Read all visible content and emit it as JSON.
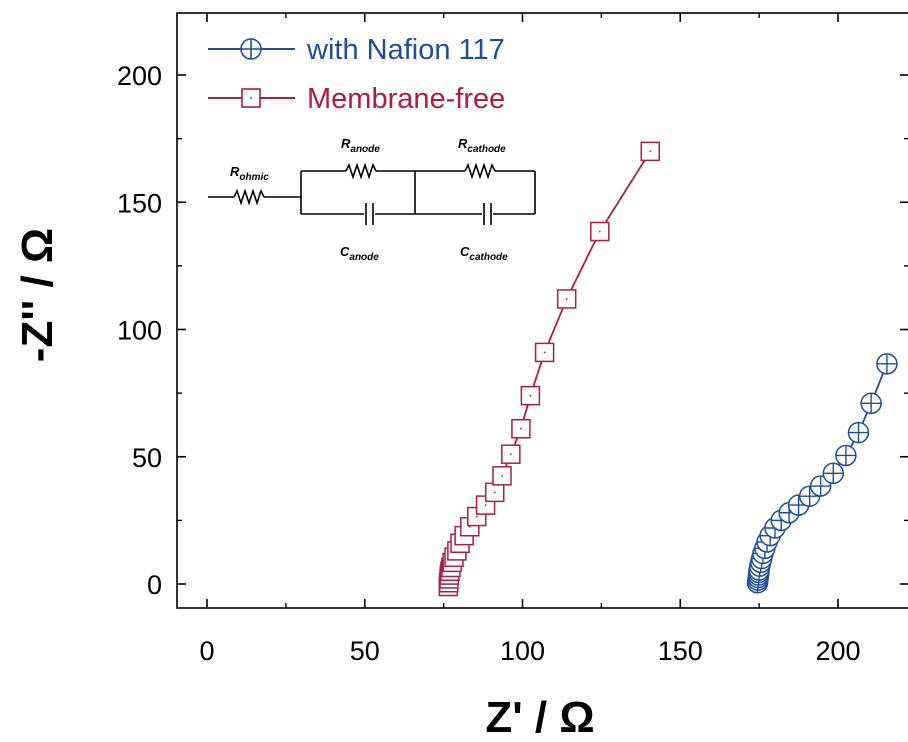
{
  "chart_data": {
    "type": "scatter",
    "xlabel": "Z' / Ω",
    "ylabel": "-Z'' / Ω",
    "xlim": [
      -10,
      220
    ],
    "ylim": [
      -10,
      225
    ],
    "xticks": [
      0,
      50,
      100,
      150,
      200
    ],
    "yticks": [
      0,
      50,
      100,
      150,
      200
    ],
    "grid": false,
    "legend_position": "top-left",
    "series": [
      {
        "name": "with Nafion 117",
        "color": "#1f4e96",
        "marker": "circle-plus",
        "points": [
          [
            174.5,
            0.5
          ],
          [
            174.6,
            1.5
          ],
          [
            174.7,
            2.5
          ],
          [
            174.8,
            3.5
          ],
          [
            174.9,
            4.5
          ],
          [
            175.0,
            5.5
          ],
          [
            175.2,
            7.0
          ],
          [
            175.5,
            8.5
          ],
          [
            175.8,
            10.0
          ],
          [
            176.2,
            12.0
          ],
          [
            176.8,
            14.0
          ],
          [
            177.5,
            16.5
          ],
          [
            178.5,
            19.0
          ],
          [
            180.0,
            22.0
          ],
          [
            182.0,
            25.0
          ],
          [
            184.5,
            28.0
          ],
          [
            187.5,
            31.0
          ],
          [
            191.0,
            34.5
          ],
          [
            194.5,
            38.5
          ],
          [
            198.5,
            43.5
          ],
          [
            202.5,
            50.5
          ],
          [
            206.5,
            59.5
          ],
          [
            210.5,
            71.0
          ],
          [
            215.5,
            86.5
          ]
        ]
      },
      {
        "name": "Membrane-free",
        "color": "#b01c44",
        "marker": "square-dot",
        "points": [
          [
            76.5,
            -1.0
          ],
          [
            76.6,
            0.5
          ],
          [
            76.7,
            2.0
          ],
          [
            76.8,
            3.5
          ],
          [
            77.0,
            5.0
          ],
          [
            77.3,
            6.5
          ],
          [
            77.7,
            8.5
          ],
          [
            78.3,
            10.5
          ],
          [
            79.2,
            13.0
          ],
          [
            80.2,
            16.0
          ],
          [
            81.5,
            19.0
          ],
          [
            83.3,
            22.5
          ],
          [
            85.5,
            26.5
          ],
          [
            88.3,
            31.0
          ],
          [
            91.2,
            36.0
          ],
          [
            93.5,
            42.5
          ],
          [
            96.3,
            51.0
          ],
          [
            99.5,
            61.0
          ],
          [
            102.5,
            74.0
          ],
          [
            107.0,
            91.0
          ],
          [
            114.0,
            112.0
          ],
          [
            124.5,
            138.5
          ],
          [
            140.5,
            170.0
          ]
        ]
      }
    ],
    "inset": {
      "description": "equivalent circuit",
      "labels": {
        "r_ohmic": "R",
        "r_ohmic_sub": "ohmic",
        "r_anode": "R",
        "r_anode_sub": "anode",
        "r_cathode": "R",
        "r_cathode_sub": "cathode",
        "c_anode": "C",
        "c_anode_sub": "anode",
        "c_cathode": "C",
        "c_cathode_sub": "cathode"
      }
    }
  }
}
